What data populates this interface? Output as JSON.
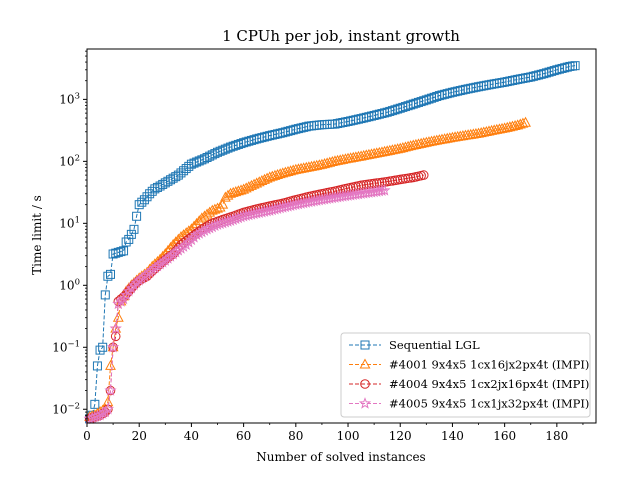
{
  "chart_data": {
    "type": "line",
    "title": "1 CPUh per job, instant growth",
    "xlabel": "Number of solved instances",
    "ylabel": "Time limit / s",
    "xlim": [
      0,
      195
    ],
    "ylim": [
      0.006,
      6500
    ],
    "yscale": "log",
    "x_ticks": [
      0,
      20,
      40,
      60,
      80,
      100,
      120,
      140,
      160,
      180
    ],
    "y_ticks": [
      {
        "value": 0.01,
        "base": "10",
        "exp": "−2"
      },
      {
        "value": 0.1,
        "base": "10",
        "exp": "−1"
      },
      {
        "value": 1,
        "base": "10",
        "exp": "0"
      },
      {
        "value": 10,
        "base": "10",
        "exp": "1"
      },
      {
        "value": 100,
        "base": "10",
        "exp": "2"
      },
      {
        "value": 1000,
        "base": "10",
        "exp": "3"
      }
    ],
    "grid": false,
    "legend_position": "lower-right",
    "series": [
      {
        "name": "Sequential LGL",
        "color": "#1f77b4",
        "marker": "square",
        "n": 187,
        "points": [
          [
            1,
            0.007
          ],
          [
            2,
            0.008
          ],
          [
            3,
            0.012
          ],
          [
            4,
            0.05
          ],
          [
            5,
            0.09
          ],
          [
            6,
            0.1
          ],
          [
            7,
            0.7
          ],
          [
            8,
            1.4
          ],
          [
            9,
            1.5
          ],
          [
            10,
            3.2
          ],
          [
            12,
            3.4
          ],
          [
            14,
            3.6
          ],
          [
            15,
            5
          ],
          [
            16,
            5.5
          ],
          [
            18,
            8
          ],
          [
            19,
            13
          ],
          [
            20,
            20
          ],
          [
            22,
            24
          ],
          [
            24,
            30
          ],
          [
            26,
            36
          ],
          [
            28,
            40
          ],
          [
            30,
            45
          ],
          [
            35,
            60
          ],
          [
            40,
            90
          ],
          [
            45,
            110
          ],
          [
            50,
            140
          ],
          [
            55,
            170
          ],
          [
            60,
            200
          ],
          [
            65,
            230
          ],
          [
            70,
            260
          ],
          [
            75,
            290
          ],
          [
            80,
            330
          ],
          [
            85,
            370
          ],
          [
            90,
            390
          ],
          [
            95,
            400
          ],
          [
            100,
            440
          ],
          [
            105,
            490
          ],
          [
            110,
            550
          ],
          [
            115,
            620
          ],
          [
            120,
            720
          ],
          [
            125,
            840
          ],
          [
            130,
            980
          ],
          [
            135,
            1150
          ],
          [
            140,
            1300
          ],
          [
            145,
            1450
          ],
          [
            150,
            1600
          ],
          [
            155,
            1750
          ],
          [
            160,
            1900
          ],
          [
            165,
            2100
          ],
          [
            170,
            2300
          ],
          [
            175,
            2600
          ],
          [
            180,
            3000
          ],
          [
            185,
            3400
          ],
          [
            187,
            3500
          ]
        ]
      },
      {
        "name": "#4001 9x4x5 1cx16jx2px4t (IMPI)",
        "color": "#ff7f0e",
        "marker": "triangle",
        "n": 168,
        "points": [
          [
            1,
            0.0075
          ],
          [
            3,
            0.008
          ],
          [
            5,
            0.009
          ],
          [
            7,
            0.01
          ],
          [
            8,
            0.013
          ],
          [
            9,
            0.05
          ],
          [
            10,
            0.1
          ],
          [
            11,
            0.2
          ],
          [
            12,
            0.3
          ],
          [
            13,
            0.55
          ],
          [
            15,
            0.8
          ],
          [
            17,
            1
          ],
          [
            20,
            1.3
          ],
          [
            23,
            1.6
          ],
          [
            25,
            2
          ],
          [
            28,
            2.6
          ],
          [
            30,
            3.2
          ],
          [
            33,
            4.5
          ],
          [
            36,
            6
          ],
          [
            40,
            8
          ],
          [
            44,
            12
          ],
          [
            48,
            16
          ],
          [
            51,
            18
          ],
          [
            52,
            20
          ],
          [
            53,
            26
          ],
          [
            55,
            30
          ],
          [
            60,
            35
          ],
          [
            65,
            44
          ],
          [
            70,
            55
          ],
          [
            75,
            64
          ],
          [
            80,
            73
          ],
          [
            85,
            80
          ],
          [
            90,
            88
          ],
          [
            95,
            100
          ],
          [
            100,
            110
          ],
          [
            105,
            120
          ],
          [
            110,
            132
          ],
          [
            115,
            145
          ],
          [
            120,
            160
          ],
          [
            125,
            180
          ],
          [
            130,
            200
          ],
          [
            135,
            220
          ],
          [
            140,
            240
          ],
          [
            145,
            260
          ],
          [
            150,
            280
          ],
          [
            155,
            310
          ],
          [
            160,
            340
          ],
          [
            165,
            380
          ],
          [
            168,
            420
          ]
        ]
      },
      {
        "name": "#4004 9x4x5 1cx2jx16px4t (IMPI)",
        "color": "#d62728",
        "marker": "circle",
        "n": 129,
        "points": [
          [
            1,
            0.007
          ],
          [
            3,
            0.0075
          ],
          [
            5,
            0.008
          ],
          [
            7,
            0.009
          ],
          [
            8,
            0.01
          ],
          [
            9,
            0.02
          ],
          [
            10,
            0.1
          ],
          [
            11,
            0.15
          ],
          [
            12,
            0.55
          ],
          [
            14,
            0.65
          ],
          [
            16,
            0.8
          ],
          [
            18,
            1
          ],
          [
            20,
            1.2
          ],
          [
            23,
            1.4
          ],
          [
            25,
            1.7
          ],
          [
            28,
            2.2
          ],
          [
            30,
            2.6
          ],
          [
            33,
            3.2
          ],
          [
            36,
            4.5
          ],
          [
            40,
            6
          ],
          [
            44,
            8
          ],
          [
            48,
            10
          ],
          [
            52,
            11.5
          ],
          [
            56,
            13
          ],
          [
            60,
            15
          ],
          [
            65,
            17
          ],
          [
            70,
            19
          ],
          [
            75,
            21
          ],
          [
            80,
            24
          ],
          [
            85,
            27
          ],
          [
            90,
            30
          ],
          [
            95,
            33
          ],
          [
            100,
            37
          ],
          [
            105,
            41
          ],
          [
            110,
            44
          ],
          [
            115,
            47
          ],
          [
            120,
            51
          ],
          [
            125,
            55
          ],
          [
            129,
            60
          ]
        ]
      },
      {
        "name": "#4005 9x4x5 1cx1jx32px4t (IMPI)",
        "color": "#e377c2",
        "marker": "star",
        "n": 114,
        "points": [
          [
            1,
            0.007
          ],
          [
            3,
            0.0075
          ],
          [
            5,
            0.008
          ],
          [
            7,
            0.009
          ],
          [
            8,
            0.01
          ],
          [
            9,
            0.02
          ],
          [
            10,
            0.1
          ],
          [
            11,
            0.2
          ],
          [
            12,
            0.5
          ],
          [
            14,
            0.6
          ],
          [
            16,
            0.8
          ],
          [
            18,
            1
          ],
          [
            20,
            1.2
          ],
          [
            23,
            1.5
          ],
          [
            26,
            1.9
          ],
          [
            30,
            2.5
          ],
          [
            34,
            3.4
          ],
          [
            38,
            4.5
          ],
          [
            42,
            6.5
          ],
          [
            46,
            8
          ],
          [
            50,
            9.5
          ],
          [
            55,
            11
          ],
          [
            60,
            13
          ],
          [
            65,
            14.5
          ],
          [
            70,
            16
          ],
          [
            75,
            18
          ],
          [
            80,
            20
          ],
          [
            85,
            22
          ],
          [
            90,
            24
          ],
          [
            95,
            26
          ],
          [
            100,
            28
          ],
          [
            105,
            30
          ],
          [
            110,
            32
          ],
          [
            114,
            34
          ]
        ]
      }
    ]
  }
}
